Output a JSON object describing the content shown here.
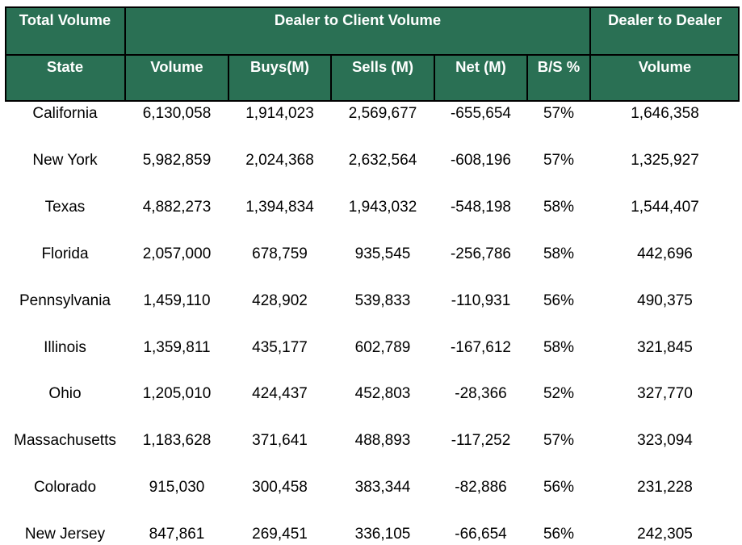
{
  "table": {
    "group_headers": {
      "total_volume": "Total Volume",
      "dealer_to_client": "Dealer to Client Volume",
      "dealer_to_dealer": "Dealer to Dealer"
    },
    "column_headers": [
      "State",
      "Volume",
      "Buys(M)",
      "Sells (M)",
      "Net (M)",
      "B/S %",
      "Volume"
    ],
    "rows": [
      [
        "California",
        "6,130,058",
        "1,914,023",
        "2,569,677",
        "-655,654",
        "57%",
        "1,646,358"
      ],
      [
        "New York",
        "5,982,859",
        "2,024,368",
        "2,632,564",
        "-608,196",
        "57%",
        "1,325,927"
      ],
      [
        "Texas",
        "4,882,273",
        "1,394,834",
        "1,943,032",
        "-548,198",
        "58%",
        "1,544,407"
      ],
      [
        "Florida",
        "2,057,000",
        "678,759",
        "935,545",
        "-256,786",
        "58%",
        "442,696"
      ],
      [
        "Pennsylvania",
        "1,459,110",
        "428,902",
        "539,833",
        "-110,931",
        "56%",
        "490,375"
      ],
      [
        "Illinois",
        "1,359,811",
        "435,177",
        "602,789",
        "-167,612",
        "58%",
        "321,845"
      ],
      [
        "Ohio",
        "1,205,010",
        "424,437",
        "452,803",
        "-28,366",
        "52%",
        "327,770"
      ],
      [
        "Massachusetts",
        "1,183,628",
        "371,641",
        "488,893",
        "-117,252",
        "57%",
        "323,094"
      ],
      [
        "Colorado",
        "915,030",
        "300,458",
        "383,344",
        "-82,886",
        "56%",
        "231,228"
      ],
      [
        "New Jersey",
        "847,861",
        "269,451",
        "336,105",
        "-66,654",
        "56%",
        "242,305"
      ]
    ],
    "colors": {
      "header_bg": "#2A7054",
      "header_text": "#FFFFFF",
      "grid": "#000000"
    }
  }
}
